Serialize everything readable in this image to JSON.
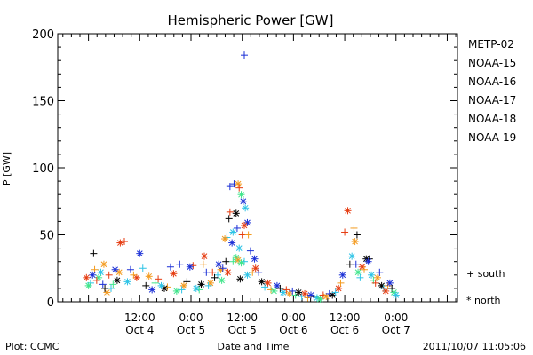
{
  "chart_data": {
    "type": "scatter",
    "title": "Hemispheric Power [GW]",
    "xlabel": "Date and Time",
    "ylabel": "P [GW]",
    "ylim": [
      0,
      200
    ],
    "xlim": [
      -0.3,
      3.6
    ],
    "x_unit": "days from 2011-10-04 00:00 UT",
    "y_ticks": [
      "0",
      "50",
      "100",
      "150",
      "200"
    ],
    "x_ticks": [
      {
        "line1": "12:00",
        "line2": "Oct 4",
        "x": 0.5
      },
      {
        "line1": "0:00",
        "line2": "Oct 5",
        "x": 1.0
      },
      {
        "line1": "12:00",
        "line2": "Oct 5",
        "x": 1.5
      },
      {
        "line1": "0:00",
        "line2": "Oct 6",
        "x": 2.0
      },
      {
        "line1": "12:00",
        "line2": "Oct 6",
        "x": 2.5
      },
      {
        "line1": "0:00",
        "line2": "Oct 7",
        "x": 3.0
      }
    ],
    "legend_position": "right",
    "series": [
      {
        "name": "METP-02",
        "color": "#000000"
      },
      {
        "name": "NOAA-15",
        "color": "#1a2fd6"
      },
      {
        "name": "NOAA-16",
        "color": "#2cc3e6"
      },
      {
        "name": "NOAA-17",
        "color": "#3fe58a"
      },
      {
        "name": "NOAA-18",
        "color": "#f39a1e"
      },
      {
        "name": "NOAA-19",
        "color": "#e53b10"
      }
    ],
    "markers": {
      "south": "+",
      "north": "*"
    },
    "marker_legend": {
      "south_label": "+ south",
      "north_label": "* north"
    },
    "points": [
      {
        "s": "NOAA-15",
        "h": "south",
        "x": 1.52,
        "y": 184
      },
      {
        "s": "NOAA-15",
        "h": "south",
        "x": 1.38,
        "y": 86
      },
      {
        "s": "NOAA-15",
        "h": "south",
        "x": 1.42,
        "y": 88
      },
      {
        "s": "NOAA-18",
        "h": "north",
        "x": 1.46,
        "y": 88
      },
      {
        "s": "NOAA-19",
        "h": "south",
        "x": 1.47,
        "y": 85
      },
      {
        "s": "NOAA-17",
        "h": "north",
        "x": 1.49,
        "y": 80
      },
      {
        "s": "NOAA-15",
        "h": "north",
        "x": 1.51,
        "y": 75
      },
      {
        "s": "NOAA-16",
        "h": "north",
        "x": 1.53,
        "y": 70
      },
      {
        "s": "NOAA-19",
        "h": "south",
        "x": 1.38,
        "y": 67
      },
      {
        "s": "METP-02",
        "h": "north",
        "x": 1.44,
        "y": 66
      },
      {
        "s": "METP-02",
        "h": "south",
        "x": 1.37,
        "y": 62
      },
      {
        "s": "NOAA-15",
        "h": "north",
        "x": 1.55,
        "y": 59
      },
      {
        "s": "NOAA-19",
        "h": "north",
        "x": 1.52,
        "y": 57
      },
      {
        "s": "NOAA-15",
        "h": "south",
        "x": 1.45,
        "y": 55
      },
      {
        "s": "NOAA-16",
        "h": "north",
        "x": 1.41,
        "y": 52
      },
      {
        "s": "NOAA-19",
        "h": "south",
        "x": 1.5,
        "y": 50
      },
      {
        "s": "NOAA-16",
        "h": "south",
        "x": 1.35,
        "y": 48
      },
      {
        "s": "NOAA-18",
        "h": "north",
        "x": 1.33,
        "y": 47
      },
      {
        "s": "NOAA-15",
        "h": "north",
        "x": 1.4,
        "y": 44
      },
      {
        "s": "NOAA-16",
        "h": "north",
        "x": 1.47,
        "y": 40
      },
      {
        "s": "NOAA-18",
        "h": "south",
        "x": 1.56,
        "y": 50
      },
      {
        "s": "NOAA-15",
        "h": "south",
        "x": 1.58,
        "y": 38
      },
      {
        "s": "NOAA-17",
        "h": "north",
        "x": 1.44,
        "y": 33
      },
      {
        "s": "NOAA-18",
        "h": "north",
        "x": 1.46,
        "y": 31
      },
      {
        "s": "NOAA-16",
        "h": "south",
        "x": 1.52,
        "y": 30
      },
      {
        "s": "NOAA-17",
        "h": "south",
        "x": 1.41,
        "y": 30
      },
      {
        "s": "NOAA-17",
        "h": "north",
        "x": 1.49,
        "y": 29
      },
      {
        "s": "NOAA-15",
        "h": "north",
        "x": 1.62,
        "y": 32
      },
      {
        "s": "METP-02",
        "h": "south",
        "x": 1.34,
        "y": 30
      },
      {
        "s": "NOAA-18",
        "h": "north",
        "x": 1.29,
        "y": 24
      },
      {
        "s": "NOAA-15",
        "h": "south",
        "x": 1.31,
        "y": 25
      },
      {
        "s": "NOAA-19",
        "h": "north",
        "x": 1.36,
        "y": 22
      },
      {
        "s": "METP-02",
        "h": "north",
        "x": 1.48,
        "y": 17
      },
      {
        "s": "NOAA-16",
        "h": "north",
        "x": 1.55,
        "y": 20
      },
      {
        "s": "NOAA-18",
        "h": "south",
        "x": 1.6,
        "y": 22
      },
      {
        "s": "NOAA-19",
        "h": "north",
        "x": 1.63,
        "y": 25
      },
      {
        "s": "NOAA-16",
        "h": "south",
        "x": 1.26,
        "y": 20
      },
      {
        "s": "NOAA-17",
        "h": "north",
        "x": 1.3,
        "y": 16
      },
      {
        "s": "NOAA-15",
        "h": "north",
        "x": 1.27,
        "y": 28
      },
      {
        "s": "NOAA-19",
        "h": "south",
        "x": 1.21,
        "y": 22
      },
      {
        "s": "METP-02",
        "h": "south",
        "x": 1.23,
        "y": 18
      },
      {
        "s": "NOAA-18",
        "h": "north",
        "x": 1.19,
        "y": 14
      },
      {
        "s": "NOAA-16",
        "h": "south",
        "x": 1.17,
        "y": 12
      },
      {
        "s": "NOAA-15",
        "h": "south",
        "x": 1.15,
        "y": 22
      },
      {
        "s": "NOAA-19",
        "h": "north",
        "x": 1.13,
        "y": 34
      },
      {
        "s": "NOAA-18",
        "h": "south",
        "x": 1.12,
        "y": 28
      },
      {
        "s": "METP-02",
        "h": "north",
        "x": 1.1,
        "y": 13
      },
      {
        "s": "NOAA-17",
        "h": "south",
        "x": 1.08,
        "y": 9
      },
      {
        "s": "NOAA-16",
        "h": "north",
        "x": 1.05,
        "y": 10
      },
      {
        "s": "NOAA-19",
        "h": "south",
        "x": 1.02,
        "y": 27
      },
      {
        "s": "NOAA-15",
        "h": "north",
        "x": 0.99,
        "y": 26
      },
      {
        "s": "NOAA-15",
        "h": "south",
        "x": 0.89,
        "y": 28
      },
      {
        "s": "NOAA-18",
        "h": "north",
        "x": 0.93,
        "y": 12
      },
      {
        "s": "METP-02",
        "h": "south",
        "x": 0.96,
        "y": 15
      },
      {
        "s": "NOAA-16",
        "h": "south",
        "x": 0.91,
        "y": 9
      },
      {
        "s": "NOAA-17",
        "h": "north",
        "x": 0.86,
        "y": 8
      },
      {
        "s": "NOAA-19",
        "h": "north",
        "x": 0.83,
        "y": 21
      },
      {
        "s": "NOAA-15",
        "h": "south",
        "x": 0.8,
        "y": 26
      },
      {
        "s": "NOAA-18",
        "h": "south",
        "x": 0.77,
        "y": 11
      },
      {
        "s": "METP-02",
        "h": "north",
        "x": 0.74,
        "y": 10
      },
      {
        "s": "NOAA-16",
        "h": "north",
        "x": 0.71,
        "y": 12
      },
      {
        "s": "NOAA-19",
        "h": "south",
        "x": 0.68,
        "y": 17
      },
      {
        "s": "NOAA-17",
        "h": "south",
        "x": 0.65,
        "y": 14
      },
      {
        "s": "NOAA-15",
        "h": "north",
        "x": 0.62,
        "y": 9
      },
      {
        "s": "NOAA-18",
        "h": "north",
        "x": 0.59,
        "y": 19
      },
      {
        "s": "METP-02",
        "h": "south",
        "x": 0.56,
        "y": 12
      },
      {
        "s": "NOAA-16",
        "h": "south",
        "x": 0.53,
        "y": 25
      },
      {
        "s": "NOAA-15",
        "h": "north",
        "x": 0.5,
        "y": 36
      },
      {
        "s": "NOAA-19",
        "h": "north",
        "x": 0.47,
        "y": 18
      },
      {
        "s": "NOAA-18",
        "h": "south",
        "x": 0.44,
        "y": 20
      },
      {
        "s": "NOAA-15",
        "h": "south",
        "x": 0.41,
        "y": 24
      },
      {
        "s": "NOAA-16",
        "h": "north",
        "x": 0.38,
        "y": 15
      },
      {
        "s": "NOAA-19",
        "h": "south",
        "x": 0.35,
        "y": 45
      },
      {
        "s": "NOAA-19",
        "h": "north",
        "x": 0.31,
        "y": 44
      },
      {
        "s": "NOAA-18",
        "h": "north",
        "x": 0.3,
        "y": 22
      },
      {
        "s": "METP-02",
        "h": "north",
        "x": 0.28,
        "y": 16
      },
      {
        "s": "NOAA-15",
        "h": "north",
        "x": 0.26,
        "y": 24
      },
      {
        "s": "NOAA-17",
        "h": "south",
        "x": 0.24,
        "y": 13
      },
      {
        "s": "NOAA-16",
        "h": "south",
        "x": 0.22,
        "y": 10
      },
      {
        "s": "NOAA-19",
        "h": "south",
        "x": 0.2,
        "y": 20
      },
      {
        "s": "NOAA-18",
        "h": "north",
        "x": 0.18,
        "y": 7
      },
      {
        "s": "METP-02",
        "h": "south",
        "x": 0.16,
        "y": 10
      },
      {
        "s": "NOAA-15",
        "h": "south",
        "x": 0.14,
        "y": 13
      },
      {
        "s": "NOAA-16",
        "h": "north",
        "x": 0.12,
        "y": 22
      },
      {
        "s": "NOAA-17",
        "h": "north",
        "x": 0.1,
        "y": 18
      },
      {
        "s": "NOAA-19",
        "h": "south",
        "x": 0.08,
        "y": 16
      },
      {
        "s": "NOAA-18",
        "h": "south",
        "x": 0.06,
        "y": 24
      },
      {
        "s": "METP-02",
        "h": "south",
        "x": 0.05,
        "y": 36
      },
      {
        "s": "NOAA-15",
        "h": "north",
        "x": 0.04,
        "y": 20
      },
      {
        "s": "NOAA-16",
        "h": "south",
        "x": 0.02,
        "y": 14
      },
      {
        "s": "NOAA-17",
        "h": "north",
        "x": 0.0,
        "y": 12
      },
      {
        "s": "NOAA-19",
        "h": "north",
        "x": -0.02,
        "y": 18
      },
      {
        "s": "NOAA-18",
        "h": "north",
        "x": 0.15,
        "y": 28
      },
      {
        "s": "NOAA-15",
        "h": "south",
        "x": 1.66,
        "y": 22
      },
      {
        "s": "METP-02",
        "h": "north",
        "x": 1.69,
        "y": 15
      },
      {
        "s": "NOAA-16",
        "h": "south",
        "x": 1.72,
        "y": 11
      },
      {
        "s": "NOAA-19",
        "h": "north",
        "x": 1.75,
        "y": 14
      },
      {
        "s": "NOAA-18",
        "h": "south",
        "x": 1.78,
        "y": 9
      },
      {
        "s": "NOAA-17",
        "h": "north",
        "x": 1.81,
        "y": 8
      },
      {
        "s": "NOAA-15",
        "h": "north",
        "x": 1.84,
        "y": 12
      },
      {
        "s": "METP-02",
        "h": "south",
        "x": 1.87,
        "y": 10
      },
      {
        "s": "NOAA-16",
        "h": "north",
        "x": 1.9,
        "y": 7
      },
      {
        "s": "NOAA-19",
        "h": "south",
        "x": 1.93,
        "y": 9
      },
      {
        "s": "NOAA-18",
        "h": "north",
        "x": 1.96,
        "y": 6
      },
      {
        "s": "NOAA-15",
        "h": "south",
        "x": 1.99,
        "y": 8
      },
      {
        "s": "NOAA-17",
        "h": "south",
        "x": 2.02,
        "y": 5
      },
      {
        "s": "METP-02",
        "h": "north",
        "x": 2.05,
        "y": 7
      },
      {
        "s": "NOAA-16",
        "h": "south",
        "x": 2.08,
        "y": 4
      },
      {
        "s": "NOAA-19",
        "h": "north",
        "x": 2.11,
        "y": 6
      },
      {
        "s": "NOAA-18",
        "h": "south",
        "x": 2.14,
        "y": 3
      },
      {
        "s": "NOAA-15",
        "h": "north",
        "x": 2.17,
        "y": 5
      },
      {
        "s": "METP-02",
        "h": "south",
        "x": 2.2,
        "y": 4
      },
      {
        "s": "NOAA-16",
        "h": "north",
        "x": 2.23,
        "y": 3
      },
      {
        "s": "NOAA-17",
        "h": "north",
        "x": 2.26,
        "y": 2
      },
      {
        "s": "NOAA-19",
        "h": "south",
        "x": 2.29,
        "y": 5
      },
      {
        "s": "NOAA-18",
        "h": "north",
        "x": 2.32,
        "y": 4
      },
      {
        "s": "NOAA-15",
        "h": "south",
        "x": 2.35,
        "y": 6
      },
      {
        "s": "METP-02",
        "h": "north",
        "x": 2.38,
        "y": 5
      },
      {
        "s": "NOAA-16",
        "h": "south",
        "x": 2.41,
        "y": 7
      },
      {
        "s": "NOAA-19",
        "h": "north",
        "x": 2.44,
        "y": 10
      },
      {
        "s": "NOAA-18",
        "h": "south",
        "x": 2.46,
        "y": 14
      },
      {
        "s": "NOAA-15",
        "h": "north",
        "x": 2.48,
        "y": 20
      },
      {
        "s": "NOAA-19",
        "h": "south",
        "x": 2.5,
        "y": 52
      },
      {
        "s": "NOAA-19",
        "h": "north",
        "x": 2.53,
        "y": 68
      },
      {
        "s": "METP-02",
        "h": "south",
        "x": 2.55,
        "y": 28
      },
      {
        "s": "NOAA-16",
        "h": "north",
        "x": 2.57,
        "y": 34
      },
      {
        "s": "NOAA-18",
        "h": "south",
        "x": 2.59,
        "y": 55
      },
      {
        "s": "METP-02",
        "h": "south",
        "x": 2.62,
        "y": 50
      },
      {
        "s": "NOAA-18",
        "h": "north",
        "x": 2.6,
        "y": 45
      },
      {
        "s": "NOAA-15",
        "h": "south",
        "x": 2.61,
        "y": 28
      },
      {
        "s": "NOAA-17",
        "h": "north",
        "x": 2.63,
        "y": 22
      },
      {
        "s": "NOAA-16",
        "h": "south",
        "x": 2.65,
        "y": 18
      },
      {
        "s": "NOAA-19",
        "h": "north",
        "x": 2.67,
        "y": 26
      },
      {
        "s": "NOAA-18",
        "h": "south",
        "x": 2.69,
        "y": 24
      },
      {
        "s": "METP-02",
        "h": "north",
        "x": 2.71,
        "y": 32
      },
      {
        "s": "METP-02",
        "h": "south",
        "x": 2.74,
        "y": 32
      },
      {
        "s": "NOAA-15",
        "h": "north",
        "x": 2.73,
        "y": 30
      },
      {
        "s": "NOAA-16",
        "h": "north",
        "x": 2.76,
        "y": 20
      },
      {
        "s": "NOAA-17",
        "h": "south",
        "x": 2.78,
        "y": 16
      },
      {
        "s": "NOAA-19",
        "h": "south",
        "x": 2.8,
        "y": 14
      },
      {
        "s": "NOAA-18",
        "h": "north",
        "x": 2.82,
        "y": 18
      },
      {
        "s": "NOAA-15",
        "h": "south",
        "x": 2.84,
        "y": 22
      },
      {
        "s": "METP-02",
        "h": "north",
        "x": 2.86,
        "y": 12
      },
      {
        "s": "NOAA-16",
        "h": "south",
        "x": 2.88,
        "y": 10
      },
      {
        "s": "NOAA-19",
        "h": "north",
        "x": 2.9,
        "y": 8
      },
      {
        "s": "NOAA-18",
        "h": "south",
        "x": 2.92,
        "y": 12
      },
      {
        "s": "NOAA-15",
        "h": "north",
        "x": 2.94,
        "y": 14
      },
      {
        "s": "METP-02",
        "h": "south",
        "x": 2.96,
        "y": 10
      },
      {
        "s": "NOAA-17",
        "h": "north",
        "x": 2.98,
        "y": 7
      },
      {
        "s": "NOAA-16",
        "h": "north",
        "x": 3.0,
        "y": 5
      }
    ]
  },
  "footer": {
    "left": "Plot: CCMC",
    "right": "2011/10/07 11:05:06"
  }
}
